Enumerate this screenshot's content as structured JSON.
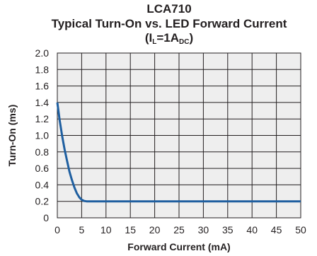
{
  "chart_data": {
    "type": "line",
    "title_line1": "LCA710",
    "title_line2": "Typical Turn-On vs. LED Forward Current",
    "title_line3": {
      "prefix": "(I",
      "sub1": "L",
      "mid": "=1A",
      "sub2": "DC",
      "suffix": ")"
    },
    "xlabel": "Forward Current (mA)",
    "ylabel": "Turn-On (ms)",
    "xlim": [
      0,
      50
    ],
    "ylim": [
      0,
      2.0
    ],
    "x_ticks": [
      0,
      5,
      10,
      15,
      20,
      25,
      30,
      35,
      40,
      45,
      50
    ],
    "y_ticks": [
      "0",
      "0.2",
      "0.4",
      "0.6",
      "0.8",
      "1.0",
      "1.2",
      "1.4",
      "1.6",
      "1.8",
      "2.0"
    ],
    "grid": true,
    "line_color": "#1f5fa0",
    "grid_color": "#231f20",
    "background": "#eeeeee",
    "series": [
      {
        "x": [
          0,
          0.5,
          1,
          1.5,
          2,
          2.5,
          3,
          3.5,
          4,
          4.5,
          5,
          5.5,
          6,
          10,
          20,
          30,
          40,
          50
        ],
        "y": [
          1.4,
          1.18,
          0.99,
          0.83,
          0.69,
          0.56,
          0.46,
          0.37,
          0.3,
          0.25,
          0.22,
          0.205,
          0.2,
          0.2,
          0.2,
          0.2,
          0.2,
          0.2
        ]
      }
    ]
  }
}
